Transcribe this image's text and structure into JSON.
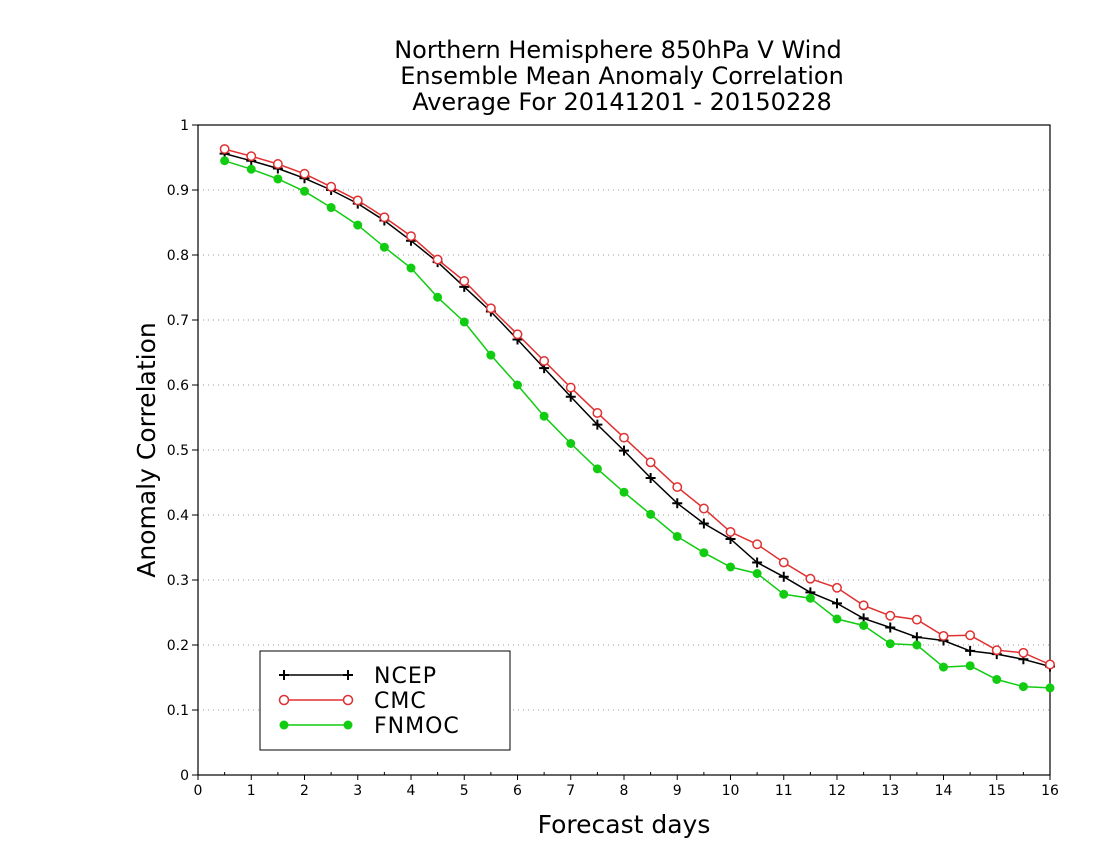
{
  "chart_data": {
    "type": "line",
    "title": [
      "Northern Hemisphere 850hPa V Wind",
      "Ensemble Mean Anomaly Correlation",
      "Average For 20141201 - 20150228"
    ],
    "xlabel": "Forecast days",
    "ylabel": "Anomaly Correlation",
    "xlim": [
      0,
      16
    ],
    "ylim": [
      0,
      1
    ],
    "xticks": [
      "0",
      "1",
      "2",
      "3",
      "4",
      "5",
      "6",
      "7",
      "8",
      "9",
      "10",
      "11",
      "12",
      "13",
      "14",
      "15",
      "16"
    ],
    "yticks": [
      "0",
      "0.1",
      "0.2",
      "0.3",
      "0.4",
      "0.5",
      "0.6",
      "0.7",
      "0.8",
      "0.9",
      "1"
    ],
    "grid": "horizontal dotted",
    "legend_position": "bottom-left",
    "x": [
      0.5,
      1,
      1.5,
      2,
      2.5,
      3,
      3.5,
      4,
      4.5,
      5,
      5.5,
      6,
      6.5,
      7,
      7.5,
      8,
      8.5,
      9,
      9.5,
      10,
      10.5,
      11,
      11.5,
      12,
      12.5,
      13,
      13.5,
      14,
      14.5,
      15,
      15.5,
      16
    ],
    "series": [
      {
        "name": "NCEP",
        "color": "#000000",
        "marker": "plus",
        "values": [
          0.956,
          0.945,
          0.933,
          0.918,
          0.9,
          0.879,
          0.853,
          0.822,
          0.789,
          0.751,
          0.713,
          0.67,
          0.626,
          0.582,
          0.539,
          0.499,
          0.457,
          0.418,
          0.387,
          0.363,
          0.327,
          0.305,
          0.281,
          0.264,
          0.241,
          0.227,
          0.212,
          0.207,
          0.191,
          0.186,
          0.178,
          0.167
        ]
      },
      {
        "name": "CMC",
        "color": "#e03030",
        "marker": "open-circle",
        "values": [
          0.963,
          0.952,
          0.94,
          0.925,
          0.905,
          0.884,
          0.858,
          0.829,
          0.793,
          0.76,
          0.718,
          0.678,
          0.637,
          0.596,
          0.557,
          0.519,
          0.481,
          0.443,
          0.41,
          0.374,
          0.355,
          0.327,
          0.302,
          0.288,
          0.261,
          0.245,
          0.239,
          0.214,
          0.215,
          0.192,
          0.188,
          0.17
        ]
      },
      {
        "name": "FNMOC",
        "color": "#11cc11",
        "marker": "filled-circle",
        "values": [
          0.945,
          0.932,
          0.917,
          0.898,
          0.873,
          0.846,
          0.812,
          0.78,
          0.735,
          0.697,
          0.646,
          0.6,
          0.552,
          0.51,
          0.471,
          0.435,
          0.401,
          0.367,
          0.342,
          0.32,
          0.31,
          0.278,
          0.272,
          0.24,
          0.23,
          0.202,
          0.2,
          0.166,
          0.168,
          0.147,
          0.136,
          0.134
        ]
      }
    ]
  }
}
